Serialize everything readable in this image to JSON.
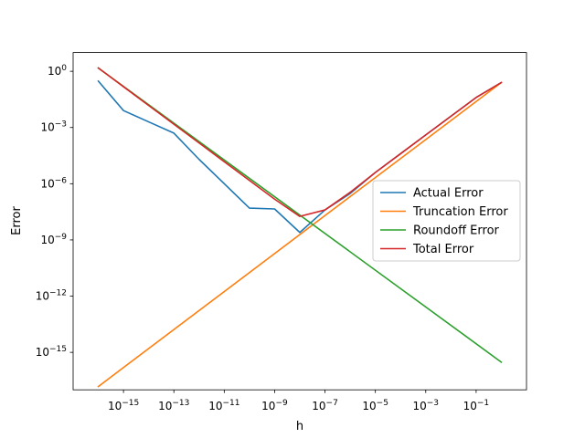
{
  "chart_data": {
    "type": "line",
    "title": "",
    "xlabel": "h",
    "ylabel": "Error",
    "xscale": "log",
    "yscale": "log",
    "xlim_exp": [
      -17,
      1
    ],
    "ylim_exp": [
      -17,
      1
    ],
    "grid": false,
    "legend_placement": "center-right",
    "x_ticks": [
      {
        "exp": -15,
        "label": "10",
        "sup": "−15"
      },
      {
        "exp": -13,
        "label": "10",
        "sup": "−13"
      },
      {
        "exp": -11,
        "label": "10",
        "sup": "−11"
      },
      {
        "exp": -9,
        "label": "10",
        "sup": "−9"
      },
      {
        "exp": -7,
        "label": "10",
        "sup": "−7"
      },
      {
        "exp": -5,
        "label": "10",
        "sup": "−5"
      },
      {
        "exp": -3,
        "label": "10",
        "sup": "−3"
      },
      {
        "exp": -1,
        "label": "10",
        "sup": "−1"
      }
    ],
    "y_ticks": [
      {
        "exp": 0,
        "label": "10",
        "sup": "0"
      },
      {
        "exp": -3,
        "label": "10",
        "sup": "−3"
      },
      {
        "exp": -6,
        "label": "10",
        "sup": "−6"
      },
      {
        "exp": -9,
        "label": "10",
        "sup": "−9"
      },
      {
        "exp": -12,
        "label": "10",
        "sup": "−12"
      },
      {
        "exp": -15,
        "label": "10",
        "sup": "−15"
      }
    ],
    "series": [
      {
        "name": "Actual Error",
        "color": "#1f77b4",
        "x": [
          1e-16,
          1e-15,
          1e-14,
          1e-13,
          1e-12,
          1e-11,
          1e-10,
          1e-09,
          1e-08,
          1e-07,
          1e-06,
          1e-05,
          0.0001,
          0.001,
          0.01,
          0.1,
          1
        ],
        "y": [
          0.3,
          0.008,
          0.002,
          0.0005,
          2e-05,
          1e-06,
          5e-08,
          4.5e-08,
          2.5e-09,
          4e-08,
          3e-07,
          4e-06,
          4e-05,
          0.0004,
          0.004,
          0.04,
          0.25
        ]
      },
      {
        "name": "Truncation Error",
        "color": "#ff7f0e",
        "x": [
          1e-16,
          1
        ],
        "y": [
          1.5e-17,
          0.25
        ]
      },
      {
        "name": "Roundoff Error",
        "color": "#2ca02c",
        "x": [
          1e-16,
          1
        ],
        "y": [
          1.5,
          3e-16
        ]
      },
      {
        "name": "Total Error",
        "color": "#d62728",
        "x": [
          1e-16,
          1e-15,
          1e-14,
          1e-13,
          1e-12,
          1e-11,
          1e-10,
          1e-09,
          1e-08,
          1e-07,
          1e-06,
          1e-05,
          0.0001,
          0.001,
          0.01,
          0.1,
          1
        ],
        "y": [
          1.5,
          0.15,
          0.015,
          0.0015,
          0.00015,
          1.5e-05,
          1.5e-06,
          1.5e-07,
          1.8e-08,
          4e-08,
          3.5e-07,
          4e-06,
          4e-05,
          0.0004,
          0.004,
          0.04,
          0.25
        ]
      }
    ]
  }
}
